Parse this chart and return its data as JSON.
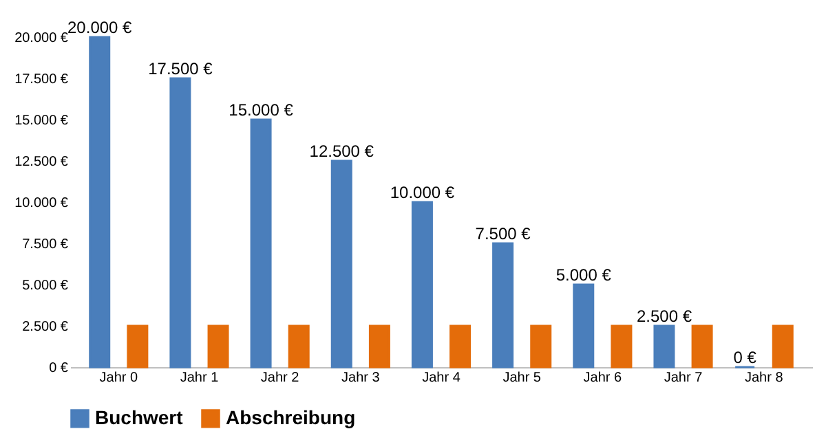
{
  "chart_data": {
    "type": "bar",
    "categories": [
      "Jahr 0",
      "Jahr 1",
      "Jahr 2",
      "Jahr 3",
      "Jahr 4",
      "Jahr 5",
      "Jahr 6",
      "Jahr 7",
      "Jahr 8"
    ],
    "series": [
      {
        "name": "Buchwert",
        "color": "#4a7ebb",
        "values": [
          20000,
          17500,
          15000,
          12500,
          10000,
          7500,
          5000,
          2500,
          0
        ],
        "value_labels": [
          "20.000 €",
          "17.500 €",
          "15.000 €",
          "12.500 €",
          "10.000 €",
          "7.500 €",
          "5.000 €",
          "2.500 €",
          "0 €"
        ]
      },
      {
        "name": "Abschreibung",
        "color": "#e46c0a",
        "values": [
          2500,
          2500,
          2500,
          2500,
          2500,
          2500,
          2500,
          2500,
          2500
        ]
      }
    ],
    "ylim": [
      0,
      20000
    ],
    "yticks": [
      {
        "value": 0,
        "label": "0 €"
      },
      {
        "value": 2500,
        "label": "2.500 €"
      },
      {
        "value": 5000,
        "label": "5.000 €"
      },
      {
        "value": 7500,
        "label": "7.500 €"
      },
      {
        "value": 10000,
        "label": "10.000 €"
      },
      {
        "value": 12500,
        "label": "12.500 €"
      },
      {
        "value": 15000,
        "label": "15.000 €"
      },
      {
        "value": 17500,
        "label": "17.500 €"
      },
      {
        "value": 20000,
        "label": "20.000 €"
      }
    ],
    "grid": false,
    "legend": "bottom"
  }
}
